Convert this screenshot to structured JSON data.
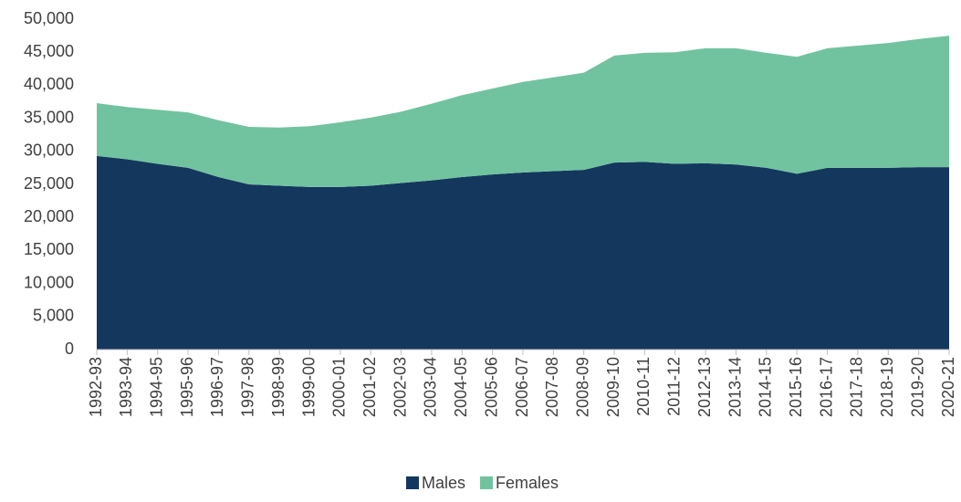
{
  "chart_data": {
    "type": "stacked_area",
    "categories": [
      "1992-93",
      "1993-94",
      "1994-95",
      "1995-96",
      "1996-97",
      "1997-98",
      "1998-99",
      "1999-00",
      "2000-01",
      "2001-02",
      "2002-03",
      "2003-04",
      "2004-05",
      "2005-06",
      "2006-07",
      "2007-08",
      "2008-09",
      "2009-10",
      "2010-11",
      "2011-12",
      "2012-13",
      "2013-14",
      "2014-15",
      "2015-16",
      "2016-17",
      "2017-18",
      "2018-19",
      "2019-20",
      "2020-21"
    ],
    "series": [
      {
        "name": "Males",
        "color": "#14375e",
        "values": [
          29300,
          28800,
          28100,
          27500,
          26100,
          25000,
          24800,
          24600,
          24600,
          24800,
          25200,
          25600,
          26100,
          26500,
          26800,
          27000,
          27200,
          28300,
          28400,
          28100,
          28200,
          28000,
          27500,
          26600,
          27500,
          27500,
          27500,
          27600,
          27600
        ]
      },
      {
        "name": "Females",
        "color": "#71c39f",
        "values": [
          8000,
          7900,
          8200,
          8400,
          8600,
          8700,
          8800,
          9200,
          9800,
          10300,
          10800,
          11600,
          12400,
          13000,
          13700,
          14200,
          14700,
          16200,
          16500,
          16900,
          17400,
          17600,
          17400,
          17700,
          18100,
          18500,
          18900,
          19400,
          19900
        ]
      }
    ],
    "ylim": [
      0,
      50000
    ],
    "yticks": [
      0,
      {
        "value": 5000,
        "label": "5,000"
      },
      {
        "value": 10000,
        "label": "10,000"
      },
      {
        "value": 15000,
        "label": "15,000"
      },
      {
        "value": 20000,
        "label": "20,000"
      },
      {
        "value": 25000,
        "label": "25,000"
      },
      {
        "value": 30000,
        "label": "30,000"
      },
      {
        "value": 35000,
        "label": "35,000"
      },
      {
        "value": 40000,
        "label": "40,000"
      },
      {
        "value": 45000,
        "label": "45,000"
      },
      {
        "value": 50000,
        "label": "50,000"
      }
    ],
    "grid": false,
    "legend": "bottom"
  }
}
